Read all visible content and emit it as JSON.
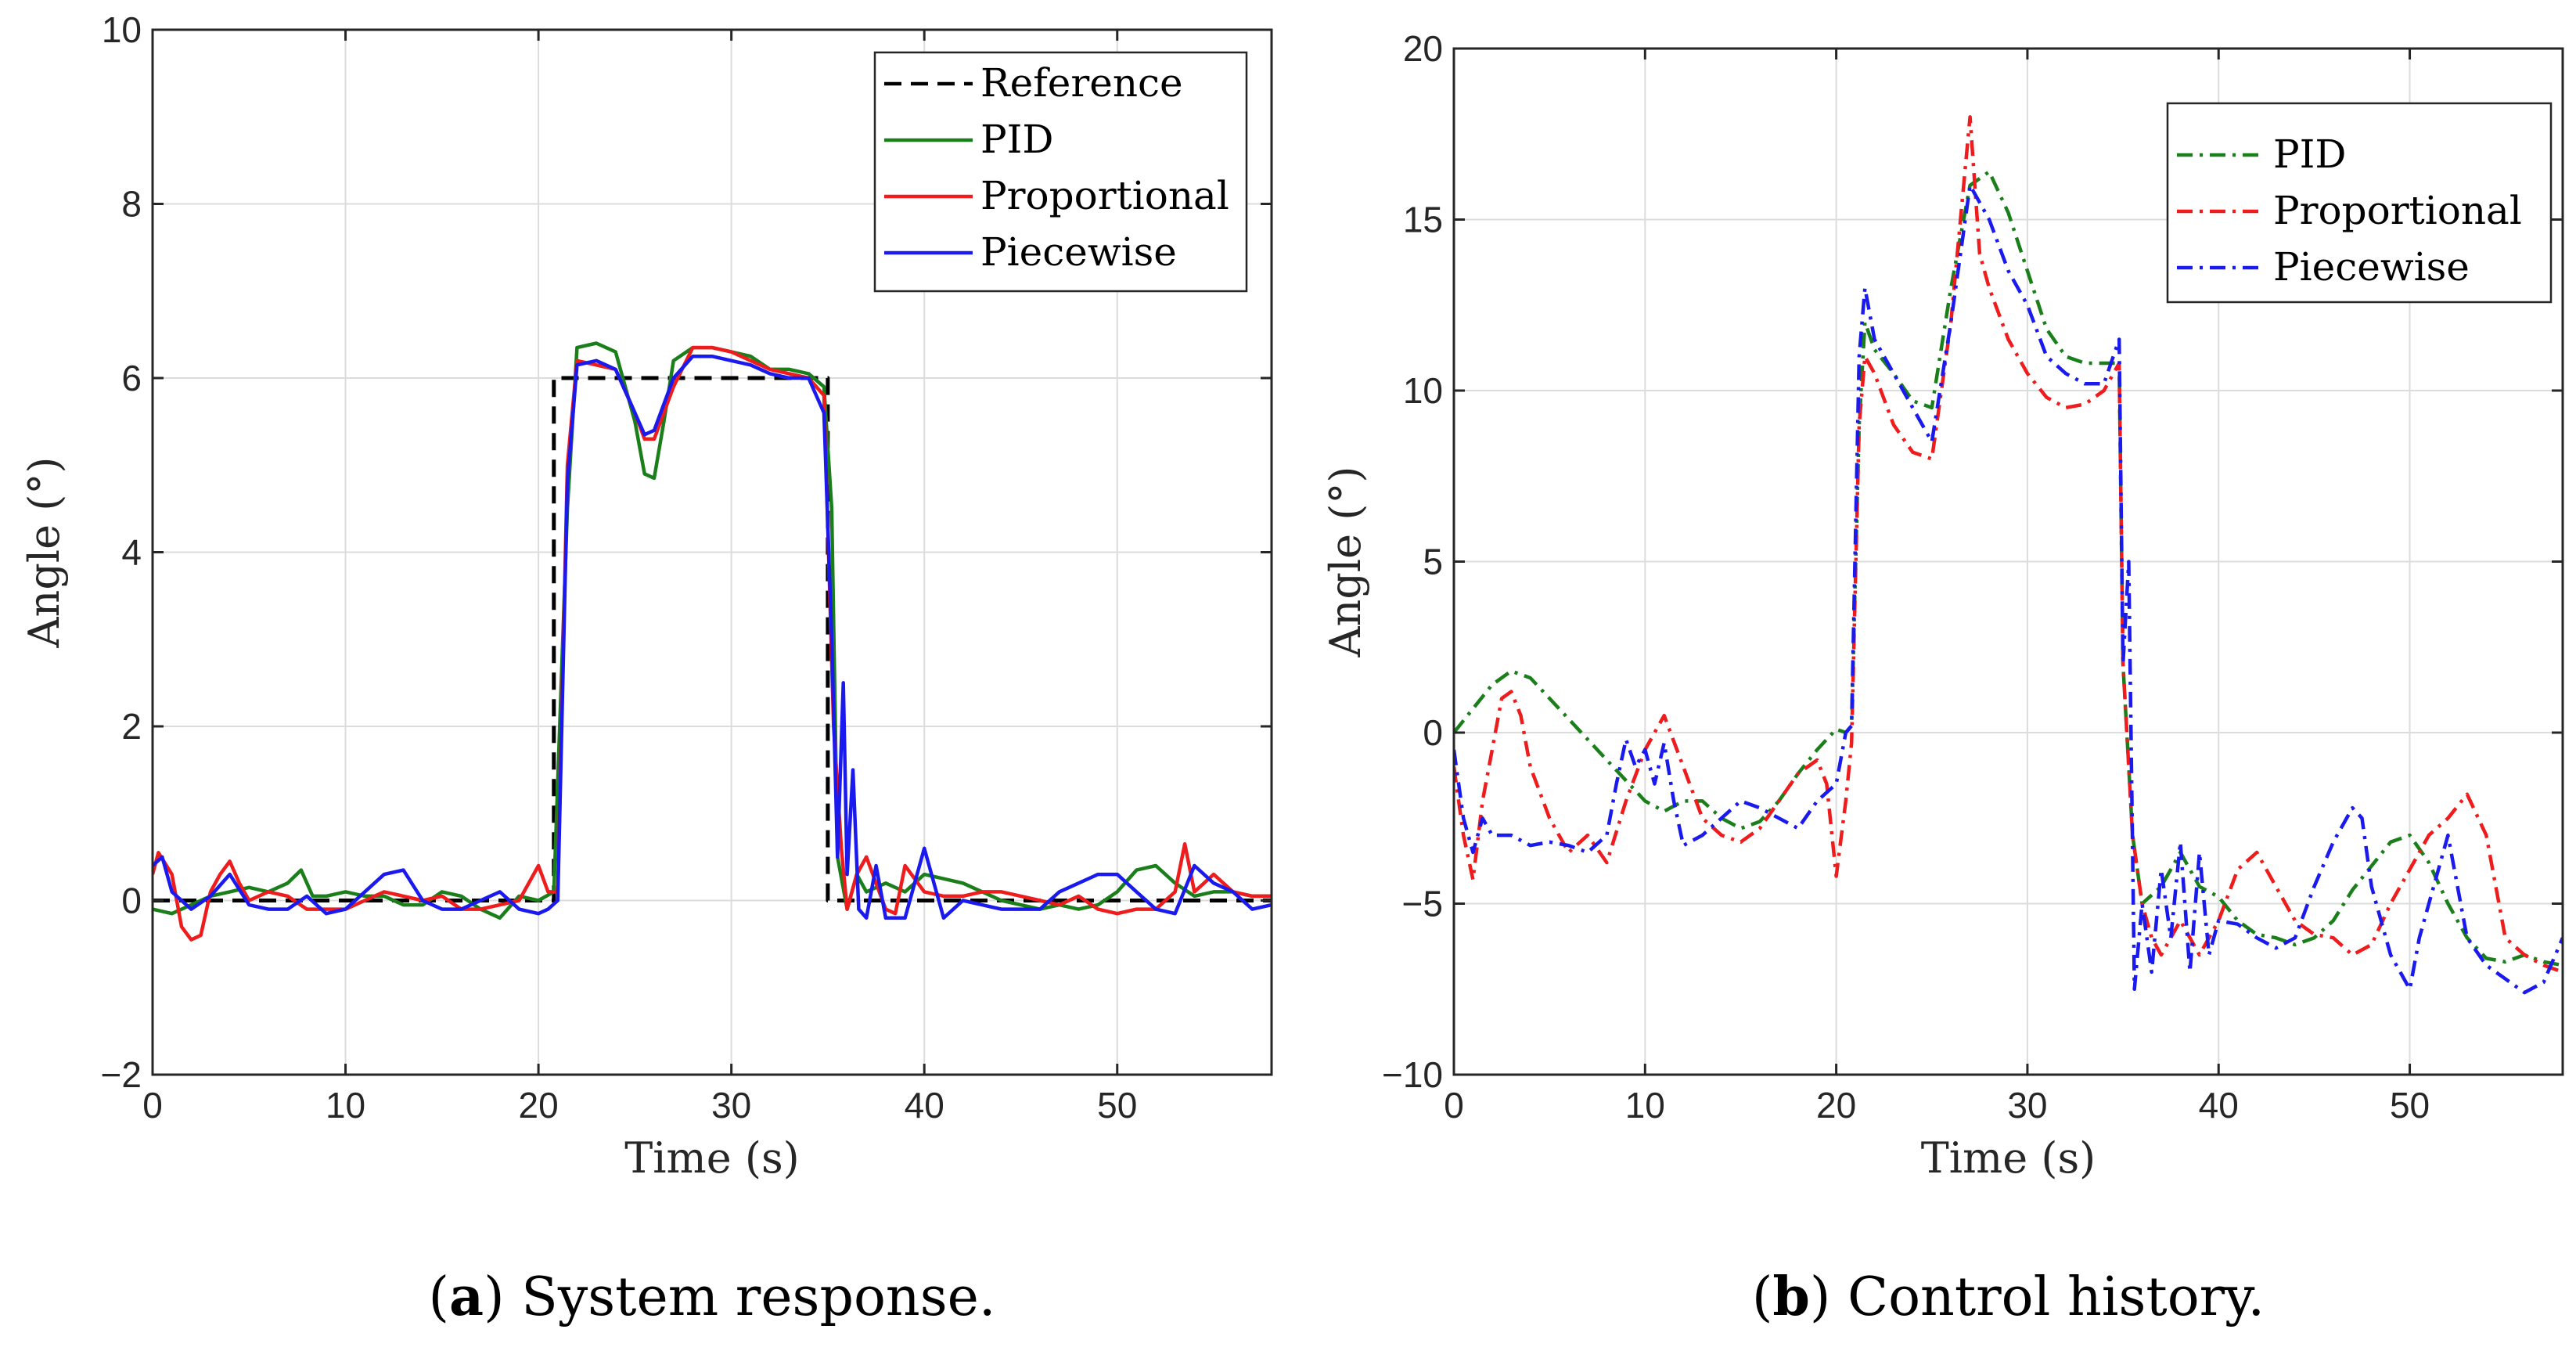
{
  "chart_data": [
    {
      "type": "line",
      "caption_letter": "a",
      "caption_text": "System response.",
      "xlabel": "Time (s)",
      "ylabel": "Angle (°)",
      "xlim": [
        0,
        58
      ],
      "ylim": [
        -2,
        10
      ],
      "xticks": [
        0,
        10,
        20,
        30,
        40,
        50
      ],
      "yticks": [
        -2,
        0,
        2,
        4,
        6,
        8,
        10
      ],
      "xtick_labels": [
        "0",
        "10",
        "20",
        "30",
        "40",
        "50"
      ],
      "ytick_labels": [
        "−2",
        "0",
        "2",
        "4",
        "6",
        "8",
        "10"
      ],
      "grid": true,
      "legend_position": "top-right",
      "series": [
        {
          "name": "Reference",
          "color": "#000000",
          "style": "dashed",
          "x": [
            0,
            20.8,
            20.8,
            35,
            35,
            58
          ],
          "y": [
            0,
            0,
            6,
            6,
            0,
            0
          ]
        },
        {
          "name": "PID",
          "color": "#1a7f1a",
          "style": "solid",
          "x": [
            0,
            1,
            2,
            3,
            4,
            5,
            6,
            7,
            7.7,
            8.3,
            9,
            10,
            11,
            12,
            13,
            14,
            15,
            16,
            17,
            18,
            19,
            20,
            20.8,
            21.5,
            22,
            23,
            24,
            25,
            25.5,
            26,
            26.5,
            27,
            28,
            29,
            30,
            31,
            32,
            33,
            34,
            34.8,
            35.2,
            35.5,
            36,
            36.5,
            37,
            38,
            39,
            40,
            41,
            42,
            43,
            44,
            45,
            46,
            47,
            48,
            49,
            50,
            51,
            52,
            53,
            54,
            55,
            56,
            57,
            58
          ],
          "y": [
            -0.1,
            -0.15,
            -0.05,
            0.05,
            0.1,
            0.15,
            0.1,
            0.2,
            0.35,
            0.05,
            0.05,
            0.1,
            0.05,
            0.05,
            -0.05,
            -0.05,
            0.1,
            0.05,
            -0.1,
            -0.2,
            0.05,
            0,
            0.1,
            4.5,
            6.35,
            6.4,
            6.3,
            5.5,
            4.9,
            4.85,
            5.5,
            6.2,
            6.35,
            6.35,
            6.3,
            6.25,
            6.1,
            6.1,
            6.05,
            5.9,
            4.5,
            0.5,
            -0.1,
            0.3,
            0.1,
            0.2,
            0.1,
            0.3,
            0.25,
            0.2,
            0.1,
            0,
            -0.05,
            -0.1,
            -0.05,
            -0.1,
            -0.05,
            0.1,
            0.35,
            0.4,
            0.2,
            0.05,
            0.1,
            0.1,
            0.05,
            0.05
          ]
        },
        {
          "name": "Proportional",
          "color": "#ee1c1c",
          "style": "solid",
          "x": [
            0,
            0.3,
            1,
            1.5,
            2,
            2.5,
            3,
            3.5,
            4,
            4.5,
            5,
            6,
            7,
            8,
            9,
            10,
            11,
            12,
            13,
            14,
            15,
            16,
            17,
            18,
            19,
            20,
            20.5,
            21,
            21.5,
            22,
            23,
            24,
            25,
            25.5,
            26,
            27,
            28,
            29,
            30,
            31,
            32,
            33,
            34,
            34.8,
            35.3,
            35.7,
            36,
            36.5,
            37,
            38,
            38.5,
            39,
            40,
            41,
            42,
            43,
            44,
            45,
            46,
            47,
            48,
            49,
            50,
            51,
            52,
            53,
            53.5,
            54,
            55,
            56,
            57,
            58
          ],
          "y": [
            0.3,
            0.55,
            0.3,
            -0.3,
            -0.45,
            -0.4,
            0.1,
            0.3,
            0.45,
            0.2,
            0,
            0.1,
            0.05,
            -0.1,
            -0.1,
            -0.1,
            0,
            0.1,
            0.05,
            0,
            0.05,
            -0.1,
            -0.1,
            -0.05,
            0,
            0.4,
            0.1,
            0.1,
            5,
            6.2,
            6.15,
            6.1,
            5.6,
            5.3,
            5.3,
            5.9,
            6.35,
            6.35,
            6.3,
            6.2,
            6.1,
            6.05,
            6,
            5.8,
            2,
            0.6,
            -0.1,
            0.3,
            0.5,
            -0.1,
            -0.15,
            0.4,
            0.1,
            0.05,
            0.05,
            0.1,
            0.1,
            0.05,
            0,
            -0.05,
            0.05,
            -0.1,
            -0.15,
            -0.1,
            -0.1,
            0.1,
            0.65,
            0.1,
            0.3,
            0.1,
            0.05,
            0.05
          ]
        },
        {
          "name": "Piecewise",
          "color": "#1a1aee",
          "style": "solid",
          "x": [
            0,
            0.5,
            1,
            2,
            3,
            4,
            5,
            6,
            7,
            8,
            9,
            10,
            11,
            12,
            13,
            14,
            15,
            16,
            17,
            18,
            19,
            20,
            20.5,
            21,
            21.5,
            22,
            23,
            24,
            25,
            25.5,
            26,
            27,
            28,
            29,
            30,
            31,
            32,
            33,
            34,
            34.8,
            35.2,
            35.5,
            35.8,
            36,
            36.3,
            36.6,
            37,
            37.5,
            38,
            39,
            40,
            41,
            42,
            43,
            44,
            45,
            46,
            47,
            48,
            49,
            50,
            51,
            52,
            53,
            54,
            55,
            56,
            57,
            58
          ],
          "y": [
            0.4,
            0.5,
            0.1,
            -0.1,
            0.05,
            0.3,
            -0.05,
            -0.1,
            -0.1,
            0.05,
            -0.15,
            -0.1,
            0.1,
            0.3,
            0.35,
            0,
            -0.1,
            -0.1,
            0,
            0.1,
            -0.1,
            -0.15,
            -0.1,
            0,
            4.8,
            6.15,
            6.2,
            6.1,
            5.6,
            5.35,
            5.4,
            6.0,
            6.25,
            6.25,
            6.2,
            6.15,
            6.05,
            6.0,
            6.0,
            5.6,
            3,
            0.5,
            2.5,
            0.3,
            1.5,
            -0.1,
            -0.2,
            0.4,
            -0.2,
            -0.2,
            0.6,
            -0.2,
            0,
            -0.05,
            -0.1,
            -0.1,
            -0.1,
            0.1,
            0.2,
            0.3,
            0.3,
            0.1,
            -0.1,
            -0.15,
            0.4,
            0.2,
            0.1,
            -0.1,
            -0.05
          ]
        }
      ]
    },
    {
      "type": "line",
      "caption_letter": "b",
      "caption_text": "Control history.",
      "xlabel": "Time (s)",
      "ylabel": "Angle (°)",
      "xlim": [
        0,
        58
      ],
      "ylim": [
        -10,
        20
      ],
      "xticks": [
        0,
        10,
        20,
        30,
        40,
        50
      ],
      "yticks": [
        -10,
        -5,
        0,
        5,
        10,
        15,
        20
      ],
      "xtick_labels": [
        "0",
        "10",
        "20",
        "30",
        "40",
        "50"
      ],
      "ytick_labels": [
        "−10",
        "−5",
        "0",
        "5",
        "10",
        "15",
        "20"
      ],
      "grid": true,
      "legend_position": "top-right",
      "series": [
        {
          "name": "PID",
          "color": "#1a7f1a",
          "style": "dashdot",
          "x": [
            0,
            1,
            2,
            3,
            4,
            5,
            6,
            7,
            8,
            9,
            10,
            11,
            12,
            13,
            14,
            15,
            16,
            17,
            18,
            19,
            20,
            20.5,
            20.8,
            21.2,
            21.5,
            22,
            23,
            24,
            25,
            26,
            27,
            28,
            29,
            30,
            31,
            32,
            33,
            34,
            34.8,
            35,
            35.5,
            36,
            37,
            38,
            39,
            40,
            41,
            42,
            43,
            44,
            45,
            46,
            47,
            48,
            49,
            50,
            51,
            52,
            53,
            54,
            55,
            56,
            57,
            58
          ],
          "y": [
            0,
            0.7,
            1.4,
            1.8,
            1.6,
            1.0,
            0.4,
            -0.2,
            -0.8,
            -1.4,
            -2.0,
            -2.3,
            -2.0,
            -2.0,
            -2.5,
            -2.8,
            -2.6,
            -2.0,
            -1.2,
            -0.5,
            0.1,
            0,
            0.2,
            9,
            12,
            11.2,
            10.5,
            9.7,
            9.5,
            13,
            16,
            16.4,
            15.2,
            13.5,
            11.8,
            11,
            10.8,
            10.8,
            10.8,
            2,
            -3,
            -5,
            -4.5,
            -3.5,
            -4.5,
            -4.8,
            -5.5,
            -5.9,
            -6.0,
            -6.2,
            -6.0,
            -5.5,
            -4.6,
            -3.9,
            -3.2,
            -3.0,
            -3.8,
            -5.0,
            -6.0,
            -6.6,
            -6.7,
            -6.5,
            -6.7,
            -6.8
          ]
        },
        {
          "name": "Proportional",
          "color": "#ee1c1c",
          "style": "dashdot",
          "x": [
            0,
            0.5,
            1,
            1.5,
            2,
            2.5,
            3,
            3.5,
            4,
            5,
            6,
            7,
            8,
            9,
            10,
            11,
            12,
            13,
            14,
            15,
            16,
            17,
            18,
            19,
            19.5,
            20,
            20.5,
            20.8,
            21.2,
            21.5,
            22,
            23,
            24,
            25,
            26,
            26.5,
            27,
            27.5,
            28,
            29,
            30,
            31,
            32,
            33,
            34,
            34.8,
            35,
            35.5,
            36,
            36.5,
            37,
            38,
            39,
            40,
            41,
            42,
            43,
            44,
            45,
            46,
            47,
            48,
            49,
            50,
            51,
            52,
            53,
            54,
            55,
            56,
            57,
            58
          ],
          "y": [
            -1,
            -3,
            -4.3,
            -2,
            -0.5,
            1.0,
            1.2,
            0.5,
            -1.0,
            -2.5,
            -3.5,
            -3.0,
            -3.8,
            -2.0,
            -0.5,
            0.5,
            -1.0,
            -2.5,
            -3.0,
            -3.2,
            -2.8,
            -2.0,
            -1.2,
            -0.8,
            -1.5,
            -4.2,
            -2.0,
            -0.3,
            9,
            11,
            10.5,
            9.0,
            8.2,
            8.0,
            12,
            15,
            18,
            14,
            13,
            11.5,
            10.5,
            9.8,
            9.5,
            9.6,
            10,
            10.8,
            2,
            -3,
            -5,
            -6,
            -6.5,
            -5.5,
            -6.5,
            -5.5,
            -4.0,
            -3.5,
            -4.5,
            -5.5,
            -5.9,
            -6.0,
            -6.5,
            -6.2,
            -5.0,
            -4.0,
            -3.0,
            -2.5,
            -1.8,
            -3.0,
            -6.0,
            -6.5,
            -6.8,
            -7.0
          ]
        },
        {
          "name": "Piecewise",
          "color": "#1a1aee",
          "style": "dashdot",
          "x": [
            0,
            0.5,
            1,
            1.5,
            2,
            3,
            4,
            5,
            6,
            7,
            8,
            8.5,
            9,
            9.5,
            10,
            10.5,
            11,
            11.5,
            12,
            13,
            14,
            15,
            16,
            17,
            18,
            19,
            20,
            20.5,
            20.8,
            21.2,
            21.5,
            22,
            23,
            24,
            25,
            26,
            27,
            28,
            29,
            30,
            31,
            32,
            33,
            34,
            34.8,
            35,
            35.3,
            35.6,
            36,
            36.5,
            37,
            37.5,
            38,
            38.5,
            39,
            39.5,
            40,
            41,
            42,
            43,
            44,
            45,
            46,
            47,
            47.5,
            48,
            49,
            50,
            50.5,
            51,
            52,
            52.5,
            53,
            54,
            55,
            56,
            57,
            58
          ],
          "y": [
            -0.5,
            -2.5,
            -3.5,
            -2.5,
            -3.0,
            -3.0,
            -3.3,
            -3.2,
            -3.3,
            -3.5,
            -3.0,
            -1.5,
            -0.2,
            -1.0,
            -0.5,
            -1.5,
            -0.3,
            -2.0,
            -3.3,
            -3.0,
            -2.5,
            -2.0,
            -2.2,
            -2.5,
            -2.8,
            -2.0,
            -1.5,
            0,
            0.2,
            11,
            13,
            11.5,
            10.5,
            9.5,
            8.5,
            12,
            16,
            15,
            13.5,
            12.5,
            11,
            10.5,
            10.2,
            10.2,
            11.5,
            2,
            5,
            -7.5,
            -5,
            -7,
            -4,
            -6,
            -3.2,
            -7,
            -3.5,
            -6.5,
            -5.5,
            -5.6,
            -6.0,
            -6.3,
            -6.0,
            -4.5,
            -3.2,
            -2.2,
            -2.5,
            -4.5,
            -6.5,
            -7.5,
            -6.0,
            -5.0,
            -3.0,
            -4.5,
            -6.0,
            -6.8,
            -7.2,
            -7.6,
            -7.3,
            -6.0
          ]
        }
      ]
    }
  ]
}
